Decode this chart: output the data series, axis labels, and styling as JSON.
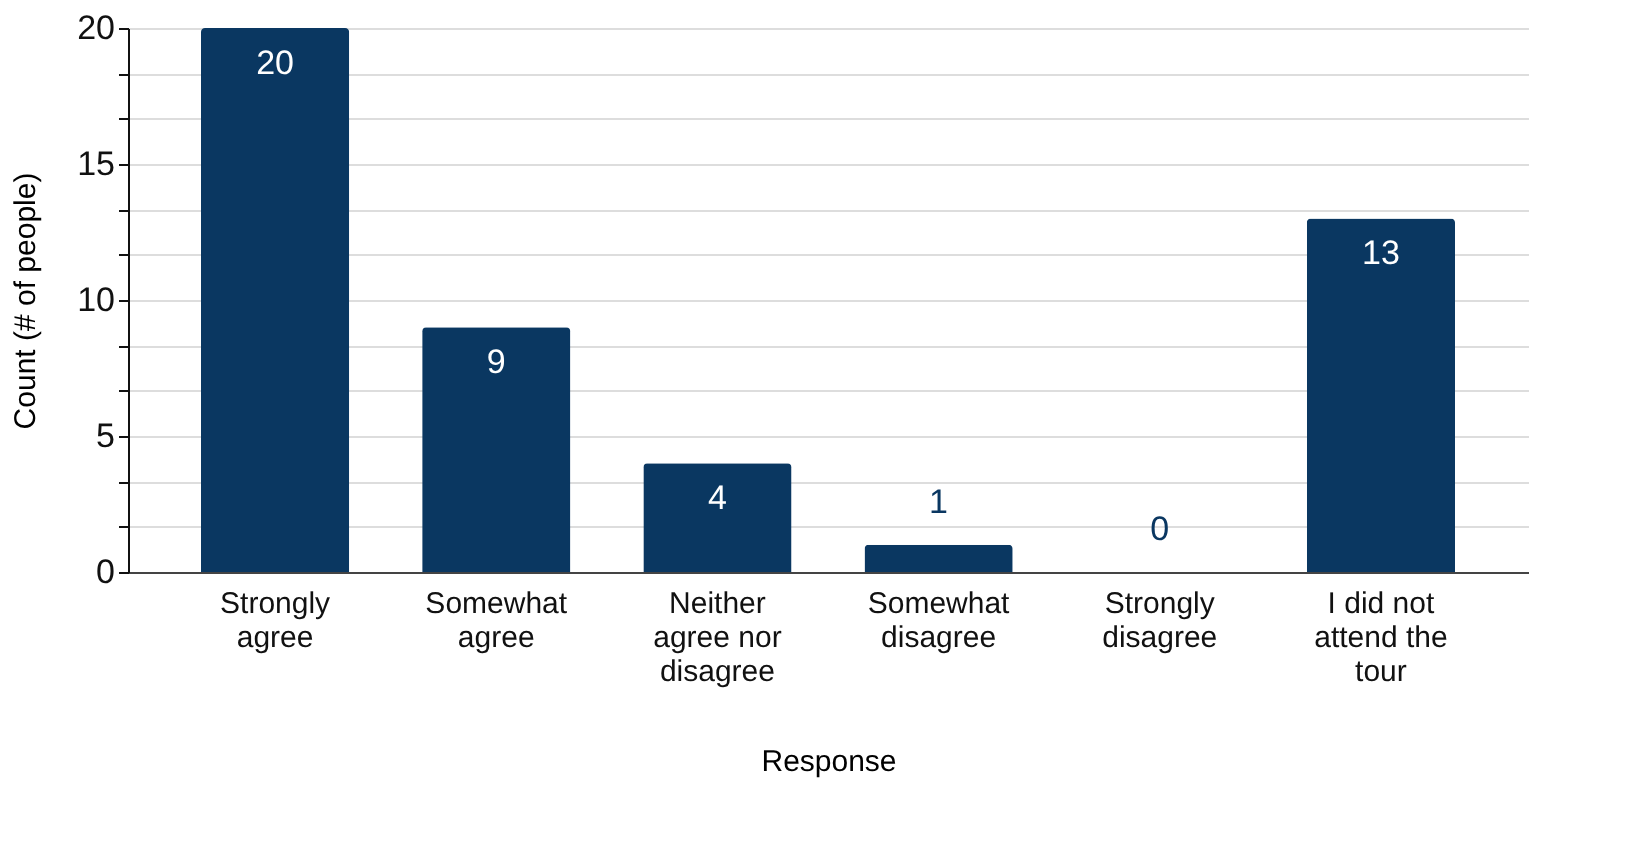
{
  "chart_data": {
    "type": "bar",
    "xlabel": "Response",
    "ylabel": "Count (# of people)",
    "categories": [
      "Strongly agree",
      "Somewhat agree",
      "Neither agree nor disagree",
      "Somewhat disagree",
      "Strongly disagree",
      "I did not attend the tour"
    ],
    "values": [
      20,
      9,
      4,
      1,
      0,
      13
    ],
    "color": "#0a3761",
    "ylim": [
      0,
      20
    ],
    "yticks": [
      0,
      {
        "value": 1.667,
        "label": null
      },
      {
        "value": 3.333,
        "label": null
      },
      5,
      {
        "value": 6.667,
        "label": null
      },
      {
        "value": 8.333,
        "label": null
      },
      10,
      {
        "value": 11.667,
        "label": null
      },
      {
        "value": 13.333,
        "label": null
      },
      15,
      {
        "value": 16.667,
        "label": null
      },
      {
        "value": 18.333,
        "label": null
      },
      20
    ],
    "grid": true,
    "data_labels": true
  }
}
